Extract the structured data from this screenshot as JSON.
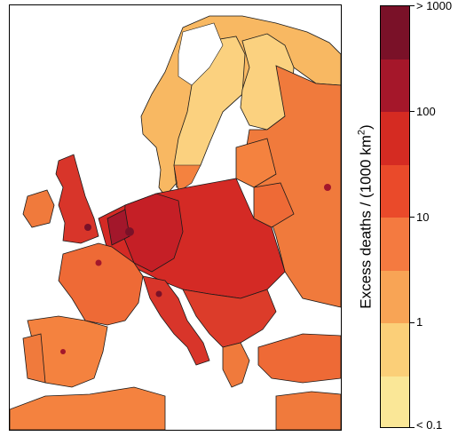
{
  "map": {
    "colors": {
      "sea": "#ffffff",
      "border": "#1a1a1a",
      "low": "#fde38b",
      "mid": "#f4823f",
      "high": "#d42a25",
      "very_high": "#a3172b"
    }
  },
  "legend": {
    "title_prefix": "Excess deaths / (1000 km",
    "title_sup": "2",
    "title_suffix": ")",
    "tick_labels": [
      "> 1000",
      "100",
      "10",
      "1",
      "< 0.1"
    ],
    "bins": [
      {
        "color": "#7a1128"
      },
      {
        "color": "#a5172a"
      },
      {
        "color": "#d52b22"
      },
      {
        "color": "#ea4a2a"
      },
      {
        "color": "#f47a40"
      },
      {
        "color": "#f8a455"
      },
      {
        "color": "#fbcf78"
      },
      {
        "color": "#fae797"
      },
      {
        "color": "#ffffff"
      }
    ]
  }
}
